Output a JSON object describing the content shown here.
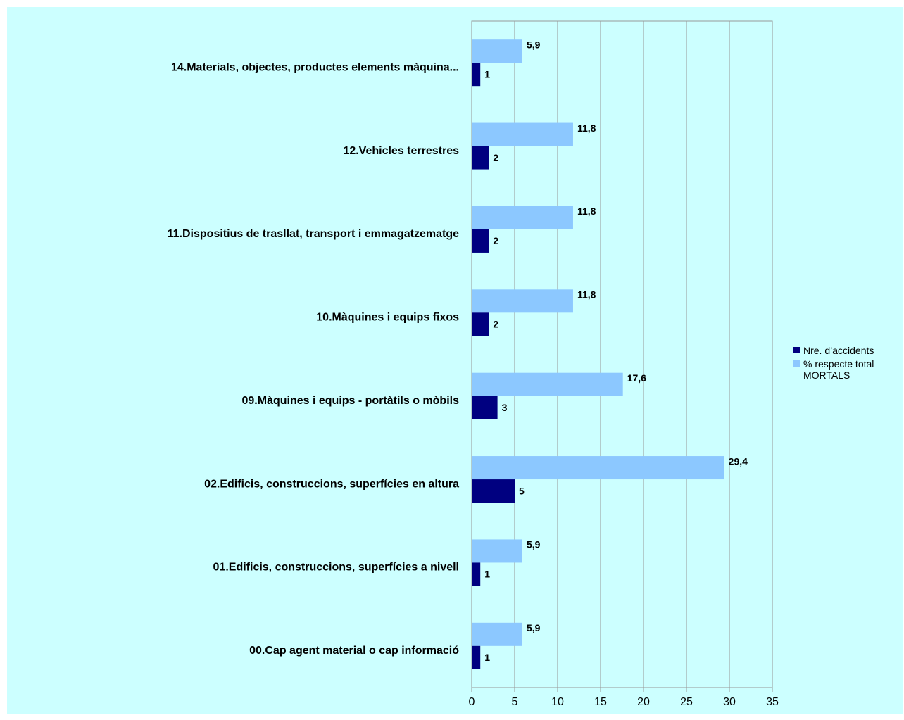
{
  "chart_data": {
    "type": "bar",
    "orientation": "horizontal",
    "categories": [
      "14.Materials, objectes, productes elements màquina...",
      "12.Vehicles terrestres",
      "11.Dispositius de trasllat, transport i emmagatzematge",
      "10.Màquines i equips fixos",
      "09.Màquines i equips - portàtils o mòbils",
      "02.Edificis, construccions, superfícies en altura",
      "01.Edificis, construccions, superfícies a nivell",
      "00.Cap agent material o cap informació"
    ],
    "series": [
      {
        "name": "% respecte total MORTALS",
        "color": "#8cc8ff",
        "values": [
          5.9,
          11.8,
          11.8,
          11.8,
          17.6,
          29.4,
          5.9,
          5.9
        ],
        "value_labels": [
          "5,9",
          "11,8",
          "11,8",
          "11,8",
          "17,6",
          "29,4",
          "5,9",
          "5,9"
        ]
      },
      {
        "name": "Nre. d’accidents",
        "color": "#000080",
        "values": [
          1,
          2,
          2,
          2,
          3,
          5,
          1,
          1
        ]
      }
    ],
    "legend_order": [
      1,
      0
    ],
    "xlim": [
      0,
      35
    ],
    "xticks": [
      0,
      5,
      10,
      15,
      20,
      25,
      30,
      35
    ],
    "grid": true,
    "legend": "right"
  }
}
